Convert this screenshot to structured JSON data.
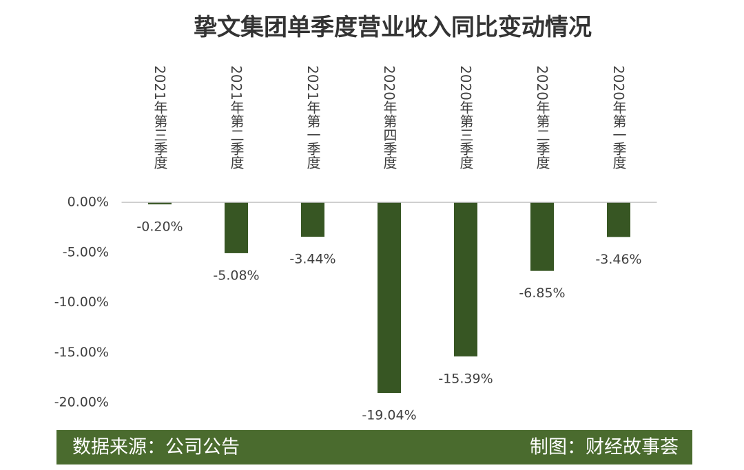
{
  "chart_data": {
    "type": "bar",
    "title": "挚文集团单季度营业收入同比变动情况",
    "categories": [
      "2021年第三季度",
      "2021年第二季度",
      "2021年第一季度",
      "2020年第四季度",
      "2020年第三季度",
      "2020年第二季度",
      "2020年第一季度"
    ],
    "values": [
      -0.2,
      -5.08,
      -3.44,
      -19.04,
      -15.39,
      -6.85,
      -3.46
    ],
    "value_labels": [
      "-0.20%",
      "-5.08%",
      "-3.44%",
      "-19.04%",
      "-15.39%",
      "-6.85%",
      "-3.46%"
    ],
    "color": "#375623",
    "ylim": [
      -20,
      0
    ],
    "yticks": [
      {
        "value": 0,
        "label": "0.00%"
      },
      {
        "value": -5,
        "label": "-5.00%"
      },
      {
        "value": -10,
        "label": "-10.00%"
      },
      {
        "value": -15,
        "label": "-15.00%"
      },
      {
        "value": -20,
        "label": "-20.00%"
      }
    ],
    "grid": false
  },
  "footer": {
    "source": "数据来源：公司公告",
    "credit": "制图：财经故事荟"
  }
}
